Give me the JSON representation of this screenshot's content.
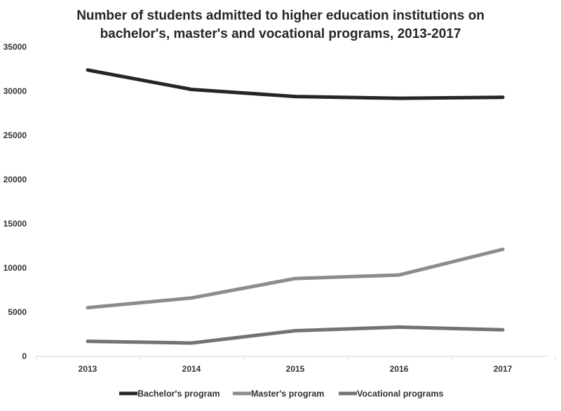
{
  "chart_data": {
    "type": "line",
    "title_line1": "Number of students admitted to higher education institutions on",
    "title_line2": "bachelor's, master's and vocational programs, 2013-2017",
    "xlabel": "",
    "ylabel": "",
    "categories": [
      "2013",
      "2014",
      "2015",
      "2016",
      "2017"
    ],
    "ylim": [
      0,
      35000
    ],
    "yticks": [
      0,
      5000,
      10000,
      15000,
      20000,
      25000,
      30000,
      35000
    ],
    "grid": false,
    "legend_position": "bottom",
    "series": [
      {
        "name": "Bachelor's program",
        "values": [
          32400,
          30200,
          29400,
          29200,
          29300
        ],
        "color": "#262626"
      },
      {
        "name": "Master's program",
        "values": [
          5500,
          6600,
          8800,
          9200,
          12100
        ],
        "color": "#8c8c8c"
      },
      {
        "name": "Vocational programs",
        "values": [
          1700,
          1500,
          2900,
          3300,
          3000
        ],
        "color": "#737373"
      }
    ]
  }
}
